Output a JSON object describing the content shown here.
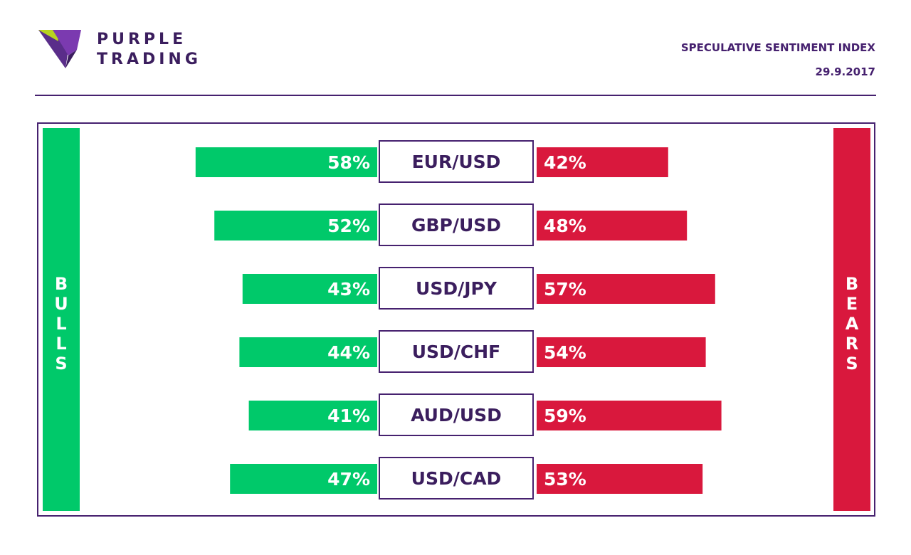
{
  "brand": {
    "line1": "PURPLE",
    "line2": "TRADING"
  },
  "header": {
    "title": "SPECULATIVE SENTIMENT INDEX",
    "date": "29.9.2017"
  },
  "labels": {
    "bulls": "BULLS",
    "bears": "BEARS"
  },
  "colors": {
    "bull": "#00c96a",
    "bear": "#d9183d",
    "purple": "#46216f"
  },
  "chart_data": {
    "type": "bar",
    "categories": [
      "EUR/USD",
      "GBP/USD",
      "USD/JPY",
      "USD/CHF",
      "AUD/USD",
      "USD/CAD"
    ],
    "series": [
      {
        "name": "BULLS",
        "values": [
          58,
          52,
          43,
          44,
          41,
          47
        ]
      },
      {
        "name": "BEARS",
        "values": [
          42,
          48,
          57,
          54,
          59,
          53
        ]
      }
    ],
    "value_labels": {
      "bulls": [
        "58%",
        "52%",
        "43%",
        "44%",
        "41%",
        "47%"
      ],
      "bears": [
        "42%",
        "48%",
        "57%",
        "54%",
        "59%",
        "53%"
      ]
    },
    "title": "SPECULATIVE SENTIMENT INDEX",
    "xlabel": "",
    "ylabel": "",
    "xlim": [
      0,
      100
    ],
    "grid": false,
    "legend": "sides"
  }
}
